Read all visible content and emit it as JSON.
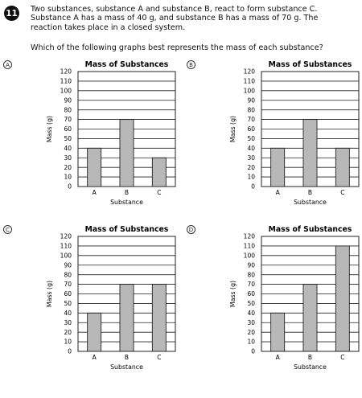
{
  "question": {
    "number": "11",
    "text_lines": [
      "Two substances, substance A and substance B, react to form substance C.",
      "Substance A has a mass of 40 g, and substance B has a mass of 70 g. The",
      "reaction takes place in a closed system."
    ],
    "prompt": "Which of the following graphs best represents the mass of each substance?"
  },
  "colors": {
    "bar_fill": "#b8b8b8",
    "bar_stroke": "#222222",
    "grid": "#222222"
  },
  "chart_data": [
    {
      "choice": "A",
      "type": "bar",
      "title": "Mass of Substances",
      "xlabel": "Substance",
      "ylabel": "Mass (g)",
      "categories": [
        "A",
        "B",
        "C"
      ],
      "values": [
        40,
        70,
        30
      ],
      "ylim": [
        0,
        120
      ],
      "yticks": [
        0,
        10,
        20,
        30,
        40,
        50,
        60,
        70,
        80,
        90,
        100,
        110,
        120
      ],
      "grid": true
    },
    {
      "choice": "B",
      "type": "bar",
      "title": "Mass of Substances",
      "xlabel": "Substance",
      "ylabel": "Mass (g)",
      "categories": [
        "A",
        "B",
        "C"
      ],
      "values": [
        40,
        70,
        40
      ],
      "ylim": [
        0,
        120
      ],
      "yticks": [
        0,
        10,
        20,
        30,
        40,
        50,
        60,
        70,
        80,
        90,
        100,
        110,
        120
      ],
      "grid": true
    },
    {
      "choice": "C",
      "type": "bar",
      "title": "Mass of Substances",
      "xlabel": "Substance",
      "ylabel": "Mass (g)",
      "categories": [
        "A",
        "B",
        "C"
      ],
      "values": [
        40,
        70,
        70
      ],
      "ylim": [
        0,
        120
      ],
      "yticks": [
        0,
        10,
        20,
        30,
        40,
        50,
        60,
        70,
        80,
        90,
        100,
        110,
        120
      ],
      "grid": true
    },
    {
      "choice": "D",
      "type": "bar",
      "title": "Mass of Substances",
      "xlabel": "Substance",
      "ylabel": "Mass (g)",
      "categories": [
        "A",
        "B",
        "C"
      ],
      "values": [
        40,
        70,
        110
      ],
      "ylim": [
        0,
        120
      ],
      "yticks": [
        0,
        10,
        20,
        30,
        40,
        50,
        60,
        70,
        80,
        90,
        100,
        110,
        120
      ],
      "grid": true
    }
  ]
}
